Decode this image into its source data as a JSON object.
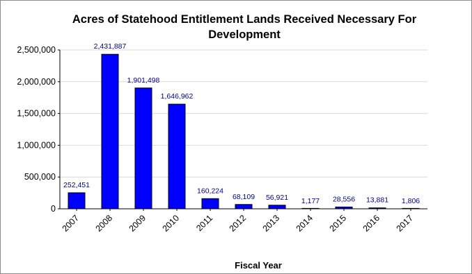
{
  "chart_data": {
    "type": "bar",
    "title": "Acres of Statehood Entitlement Lands Received Necessary For Development",
    "xlabel": "Fiscal Year",
    "ylabel": "",
    "ylim": [
      0,
      2500000
    ],
    "yticks": [
      0,
      500000,
      1000000,
      1500000,
      2000000,
      2500000
    ],
    "ytick_labels": [
      "0",
      "500,000",
      "1,000,000",
      "1,500,000",
      "2,000,000",
      "2,500,000"
    ],
    "grid": true,
    "legend": "none",
    "bar_color": "#0000ff",
    "label_color": "#00008b",
    "categories": [
      "2007",
      "2008",
      "2009",
      "2010",
      "2011",
      "2012",
      "2013",
      "2014",
      "2015",
      "2016",
      "2017"
    ],
    "values": [
      252451,
      2431887,
      1901498,
      1646962,
      160224,
      68109,
      56921,
      1177,
      28556,
      13881,
      1806
    ],
    "data_labels": [
      "252,451",
      "2,431,887",
      "1,901,498",
      "1,646,962",
      "160,224",
      "68,109",
      "56,921",
      "1,177",
      "28,556",
      "13,881",
      "1,806"
    ]
  }
}
